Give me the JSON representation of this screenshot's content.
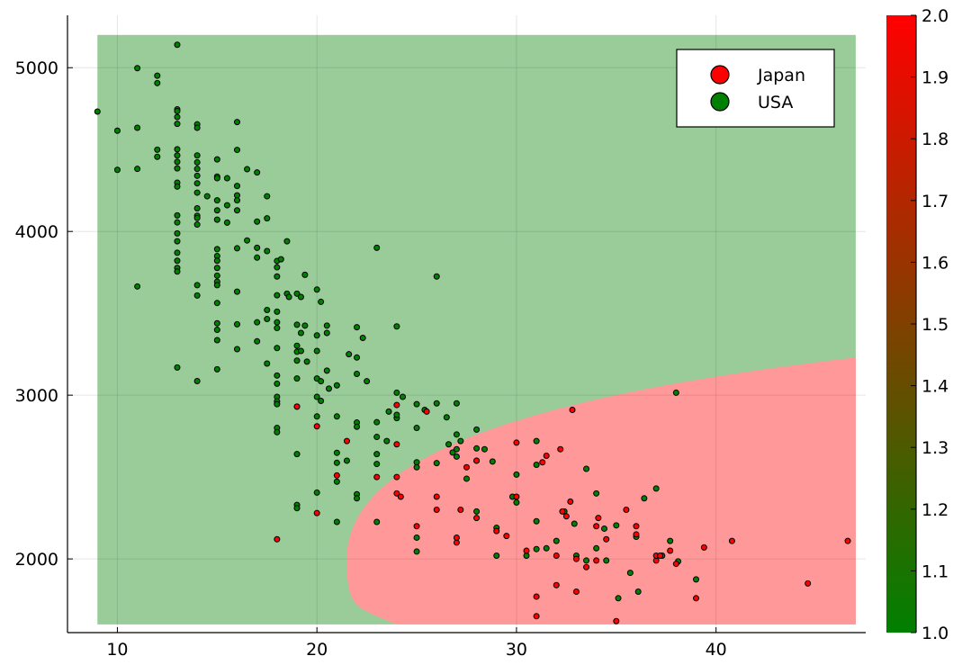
{
  "chart_data": {
    "type": "scatter",
    "title": "",
    "xlabel": "",
    "ylabel": "",
    "xlim": [
      7.5,
      47.5
    ],
    "ylim": [
      1550,
      5320
    ],
    "x_ticks": [
      10,
      20,
      30,
      40
    ],
    "y_ticks": [
      2000,
      3000,
      4000,
      5000
    ],
    "grid": true,
    "legend_position": "top-right",
    "decision_regions": {
      "x_range": [
        9,
        47
      ],
      "y_range": [
        1600,
        5200
      ],
      "classes": [
        {
          "name": "USA",
          "fill": "#99cc99"
        },
        {
          "name": "Japan",
          "fill": "#ff9999",
          "boundary": {
            "vertex": [
              21.5,
              2000
            ],
            "upper_point": [
              47,
              3230
            ],
            "lower_point": [
              24,
              1600
            ]
          }
        }
      ]
    },
    "colorbar": {
      "min": 1.0,
      "max": 2.0,
      "low_color": "#008000",
      "high_color": "#ff0000",
      "ticks": [
        "1.0",
        "1.1",
        "1.2",
        "1.3",
        "1.4",
        "1.5",
        "1.6",
        "1.7",
        "1.8",
        "1.9",
        "2.0"
      ]
    },
    "series": [
      {
        "name": "Japan",
        "color": "#ff0000",
        "points": [
          [
            18,
            2120
          ],
          [
            19,
            2930
          ],
          [
            20,
            2810
          ],
          [
            20,
            2280
          ],
          [
            21,
            2510
          ],
          [
            21.5,
            2720
          ],
          [
            23,
            2500
          ],
          [
            24,
            2400
          ],
          [
            24,
            2700
          ],
          [
            24,
            2940
          ],
          [
            24.2,
            2380
          ],
          [
            24,
            2500
          ],
          [
            25,
            2200
          ],
          [
            25.5,
            2900
          ],
          [
            26,
            2300
          ],
          [
            26,
            2380
          ],
          [
            27,
            2100
          ],
          [
            27,
            2130
          ],
          [
            27.2,
            2300
          ],
          [
            27.5,
            2560
          ],
          [
            28,
            2250
          ],
          [
            28,
            2600
          ],
          [
            29,
            2170
          ],
          [
            29.5,
            2140
          ],
          [
            30,
            2710
          ],
          [
            30,
            2380
          ],
          [
            30.5,
            2050
          ],
          [
            31,
            1770
          ],
          [
            31,
            1650
          ],
          [
            31.3,
            2590
          ],
          [
            31.5,
            2630
          ],
          [
            32,
            2020
          ],
          [
            32,
            1840
          ],
          [
            32.2,
            2670
          ],
          [
            32.3,
            2290
          ],
          [
            32.5,
            2260
          ],
          [
            32.7,
            2350
          ],
          [
            32.8,
            2910
          ],
          [
            33,
            1800
          ],
          [
            33,
            2000
          ],
          [
            33.5,
            1950
          ],
          [
            34,
            2200
          ],
          [
            34,
            1990
          ],
          [
            34.1,
            2250
          ],
          [
            34.5,
            2120
          ],
          [
            35,
            1620
          ],
          [
            35.5,
            2300
          ],
          [
            36,
            2200
          ],
          [
            36,
            2150
          ],
          [
            37,
            1990
          ],
          [
            37,
            2020
          ],
          [
            37.2,
            2020
          ],
          [
            37.7,
            2050
          ],
          [
            38,
            1970
          ],
          [
            39,
            1760
          ],
          [
            39.4,
            2070
          ],
          [
            40.8,
            2110
          ],
          [
            44.6,
            1850
          ],
          [
            46.6,
            2110
          ]
        ]
      },
      {
        "name": "USA",
        "color": "#008000",
        "points": [
          [
            9,
            4732
          ],
          [
            10,
            4615
          ],
          [
            10,
            4376
          ],
          [
            11,
            4997
          ],
          [
            11,
            4633
          ],
          [
            11,
            4382
          ],
          [
            11,
            3664
          ],
          [
            12,
            4951
          ],
          [
            12,
            4906
          ],
          [
            12,
            4499
          ],
          [
            12,
            4456
          ],
          [
            13,
            5140
          ],
          [
            13,
            4746
          ],
          [
            13,
            4735
          ],
          [
            13,
            4699
          ],
          [
            13,
            4657
          ],
          [
            13,
            4502
          ],
          [
            13,
            4464
          ],
          [
            13,
            4425
          ],
          [
            13,
            4385
          ],
          [
            13,
            4298
          ],
          [
            13,
            4274
          ],
          [
            13,
            4098
          ],
          [
            13,
            4055
          ],
          [
            13,
            3988
          ],
          [
            13,
            3940
          ],
          [
            13,
            3870
          ],
          [
            13,
            3821
          ],
          [
            13,
            3777
          ],
          [
            13,
            3755
          ],
          [
            13,
            3169
          ],
          [
            14,
            4654
          ],
          [
            14,
            4633
          ],
          [
            14,
            4464
          ],
          [
            14,
            4422
          ],
          [
            14,
            4382
          ],
          [
            14,
            4340
          ],
          [
            14,
            4294
          ],
          [
            14,
            4237
          ],
          [
            14,
            4141
          ],
          [
            14,
            4096
          ],
          [
            14,
            4082
          ],
          [
            14,
            4042
          ],
          [
            14,
            3672
          ],
          [
            14,
            3609
          ],
          [
            14,
            3086
          ],
          [
            14.5,
            4215
          ],
          [
            15,
            4440
          ],
          [
            15,
            4335
          ],
          [
            15,
            4325
          ],
          [
            15,
            4190
          ],
          [
            15,
            4129
          ],
          [
            15,
            4072
          ],
          [
            15,
            3892
          ],
          [
            15,
            3850
          ],
          [
            15,
            3821
          ],
          [
            15,
            3777
          ],
          [
            15,
            3730
          ],
          [
            15,
            3693
          ],
          [
            15,
            3672
          ],
          [
            15,
            3563
          ],
          [
            15,
            3439
          ],
          [
            15,
            3399
          ],
          [
            15,
            3336
          ],
          [
            15,
            3158
          ],
          [
            15.5,
            4325
          ],
          [
            15.5,
            4160
          ],
          [
            15.5,
            4054
          ],
          [
            16,
            4668
          ],
          [
            16,
            4498
          ],
          [
            16,
            4278
          ],
          [
            16,
            4220
          ],
          [
            16,
            4190
          ],
          [
            16,
            4129
          ],
          [
            16,
            3897
          ],
          [
            16,
            3632
          ],
          [
            16,
            3433
          ],
          [
            16,
            3281
          ],
          [
            16.5,
            4380
          ],
          [
            16.5,
            3945
          ],
          [
            17,
            4360
          ],
          [
            17,
            4060
          ],
          [
            17,
            3900
          ],
          [
            17,
            3840
          ],
          [
            17,
            3445
          ],
          [
            17,
            3329
          ],
          [
            17.5,
            4215
          ],
          [
            17.5,
            4080
          ],
          [
            17.5,
            3880
          ],
          [
            17.5,
            3520
          ],
          [
            17.5,
            3465
          ],
          [
            17.5,
            3193
          ],
          [
            18,
            3820
          ],
          [
            18,
            3781
          ],
          [
            18,
            3725
          ],
          [
            18,
            3610
          ],
          [
            18,
            3510
          ],
          [
            18,
            3445
          ],
          [
            18,
            3410
          ],
          [
            18,
            3288
          ],
          [
            18,
            3120
          ],
          [
            18,
            3070
          ],
          [
            18,
            2990
          ],
          [
            18,
            2962
          ],
          [
            18,
            2945
          ],
          [
            18,
            2800
          ],
          [
            18,
            2774
          ],
          [
            18.2,
            3830
          ],
          [
            18.5,
            3940
          ],
          [
            18.5,
            3620
          ],
          [
            18.6,
            3600
          ],
          [
            19,
            3620
          ],
          [
            19,
            3430
          ],
          [
            19,
            3302
          ],
          [
            19,
            3265
          ],
          [
            19,
            3211
          ],
          [
            19,
            3102
          ],
          [
            19,
            2930
          ],
          [
            19,
            2640
          ],
          [
            19,
            2330
          ],
          [
            19,
            2310
          ],
          [
            19.2,
            3600
          ],
          [
            19.2,
            3380
          ],
          [
            19.2,
            3270
          ],
          [
            19.4,
            3735
          ],
          [
            19.4,
            3425
          ],
          [
            19.5,
            3205
          ],
          [
            20,
            3645
          ],
          [
            20,
            3365
          ],
          [
            20,
            3270
          ],
          [
            20,
            3102
          ],
          [
            20,
            2990
          ],
          [
            20,
            2870
          ],
          [
            20,
            2405
          ],
          [
            20.2,
            3570
          ],
          [
            20.2,
            3085
          ],
          [
            20.2,
            2965
          ],
          [
            20.5,
            3425
          ],
          [
            20.5,
            3380
          ],
          [
            20.5,
            3150
          ],
          [
            20.6,
            3040
          ],
          [
            21,
            3060
          ],
          [
            21,
            2870
          ],
          [
            21,
            2648
          ],
          [
            21,
            2587
          ],
          [
            21,
            2472
          ],
          [
            21,
            2226
          ],
          [
            21.5,
            2600
          ],
          [
            21.6,
            3250
          ],
          [
            22,
            3415
          ],
          [
            22,
            3230
          ],
          [
            22,
            3130
          ],
          [
            22,
            2833
          ],
          [
            22,
            2807
          ],
          [
            22,
            2395
          ],
          [
            22,
            2370
          ],
          [
            22.3,
            3350
          ],
          [
            22.5,
            3085
          ],
          [
            23,
            3900
          ],
          [
            23,
            2835
          ],
          [
            23,
            2745
          ],
          [
            23,
            2640
          ],
          [
            23,
            2580
          ],
          [
            23,
            2226
          ],
          [
            23.5,
            2720
          ],
          [
            23.6,
            2900
          ],
          [
            24,
            2860
          ],
          [
            24,
            2880
          ],
          [
            24,
            3420
          ],
          [
            24,
            3015
          ],
          [
            24.3,
            2990
          ],
          [
            25,
            2945
          ],
          [
            25,
            2800
          ],
          [
            25,
            2590
          ],
          [
            25,
            2560
          ],
          [
            25,
            2130
          ],
          [
            25,
            2045
          ],
          [
            25.4,
            2910
          ],
          [
            26,
            3725
          ],
          [
            26,
            2585
          ],
          [
            26,
            2950
          ],
          [
            26.5,
            2865
          ],
          [
            26.6,
            2700
          ],
          [
            26.8,
            2650
          ],
          [
            27,
            2950
          ],
          [
            27,
            2670
          ],
          [
            27,
            2625
          ],
          [
            27,
            2760
          ],
          [
            27.2,
            2720
          ],
          [
            27.5,
            2490
          ],
          [
            28,
            2790
          ],
          [
            28,
            2675
          ],
          [
            28,
            2600
          ],
          [
            28,
            2290
          ],
          [
            28.4,
            2670
          ],
          [
            28.8,
            2595
          ],
          [
            29,
            2190
          ],
          [
            29,
            2020
          ],
          [
            29.8,
            2380
          ],
          [
            30,
            2515
          ],
          [
            30,
            2345
          ],
          [
            30.5,
            2020
          ],
          [
            31,
            2720
          ],
          [
            31,
            2575
          ],
          [
            31,
            2230
          ],
          [
            31,
            2060
          ],
          [
            31.5,
            2065
          ],
          [
            32,
            2110
          ],
          [
            32.4,
            2290
          ],
          [
            32.9,
            2215
          ],
          [
            33,
            2020
          ],
          [
            33.5,
            1990
          ],
          [
            33.5,
            2550
          ],
          [
            34,
            2400
          ],
          [
            34,
            2065
          ],
          [
            34.4,
            2185
          ],
          [
            34.5,
            1990
          ],
          [
            35,
            2205
          ],
          [
            35.1,
            1760
          ],
          [
            35.7,
            1915
          ],
          [
            36,
            2135
          ],
          [
            36.1,
            1800
          ],
          [
            36.4,
            2370
          ],
          [
            37,
            2430
          ],
          [
            37.3,
            2020
          ],
          [
            37.7,
            2110
          ],
          [
            38,
            3015
          ],
          [
            38.1,
            1985
          ],
          [
            39,
            1875
          ]
        ]
      }
    ]
  }
}
